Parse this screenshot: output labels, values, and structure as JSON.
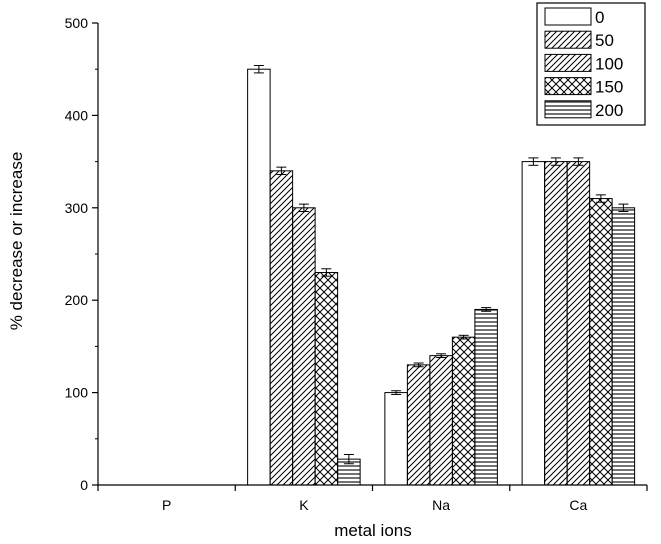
{
  "chart_data": {
    "type": "bar",
    "categories": [
      "P",
      "K",
      "Na",
      "Ca"
    ],
    "series": [
      {
        "name": "0",
        "pattern": "blank",
        "values": [
          0,
          450,
          100,
          350
        ],
        "errors": [
          0,
          4,
          2,
          4
        ]
      },
      {
        "name": "50",
        "pattern": "diag",
        "values": [
          0,
          340,
          130,
          350
        ],
        "errors": [
          0,
          4,
          2,
          4
        ]
      },
      {
        "name": "100",
        "pattern": "diag",
        "values": [
          0,
          300,
          140,
          350
        ],
        "errors": [
          0,
          4,
          2,
          4
        ]
      },
      {
        "name": "150",
        "pattern": "crosshatch",
        "values": [
          0,
          230,
          160,
          310
        ],
        "errors": [
          0,
          4,
          2,
          4
        ]
      },
      {
        "name": "200",
        "pattern": "horizontal",
        "values": [
          0,
          28,
          190,
          300
        ],
        "errors": [
          0,
          5,
          2,
          4
        ]
      }
    ],
    "xlabel": "metal ions",
    "ylabel": "% decrease or increase",
    "ylim": [
      0,
      500
    ],
    "yticks": [
      "0",
      "100",
      "200",
      "300",
      "400",
      "500"
    ],
    "grid": false,
    "legend_position": "top-right",
    "colors": {
      "bar_fill": "#ffffff",
      "stroke": "#000000"
    }
  }
}
